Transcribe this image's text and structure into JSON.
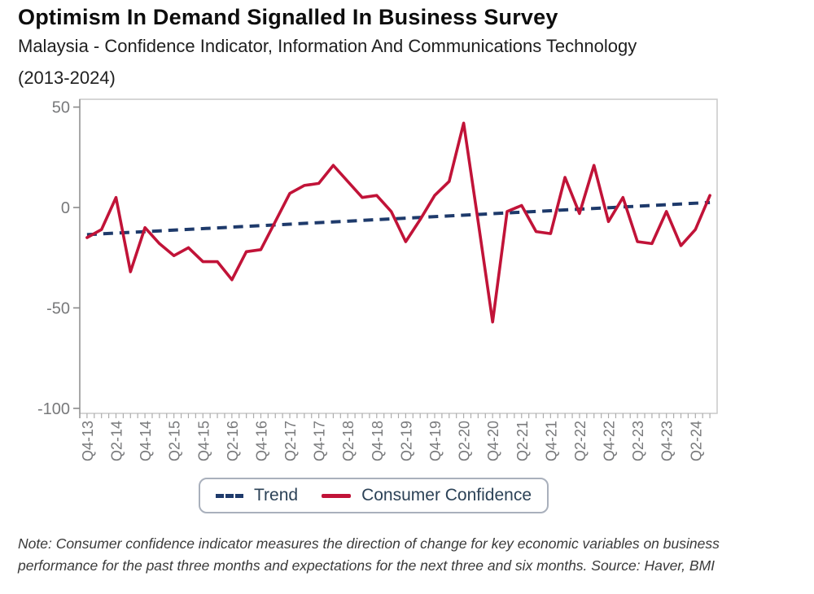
{
  "header": {
    "title": "Optimism In Demand Signalled In Business Survey",
    "subtitle_line1": "Malaysia - Confidence Indicator, Information And Communications Technology",
    "subtitle_line2": "(2013-2024)"
  },
  "chart_data": {
    "type": "line",
    "title": "Optimism In Demand Signalled In Business Survey",
    "subtitle": "Malaysia - Confidence Indicator, Information And Communications Technology (2013-2024)",
    "categories": [
      "Q4-13",
      "Q1-14",
      "Q2-14",
      "Q3-14",
      "Q4-14",
      "Q1-15",
      "Q2-15",
      "Q3-15",
      "Q4-15",
      "Q1-16",
      "Q2-16",
      "Q3-16",
      "Q4-16",
      "Q1-17",
      "Q2-17",
      "Q3-17",
      "Q4-17",
      "Q1-18",
      "Q2-18",
      "Q3-18",
      "Q4-18",
      "Q1-19",
      "Q2-19",
      "Q3-19",
      "Q4-19",
      "Q1-20",
      "Q2-20",
      "Q3-20",
      "Q4-20",
      "Q1-21",
      "Q2-21",
      "Q3-21",
      "Q4-21",
      "Q1-22",
      "Q2-22",
      "Q3-22",
      "Q4-22",
      "Q1-23",
      "Q2-23",
      "Q3-23",
      "Q4-23",
      "Q1-24",
      "Q2-24",
      "Q3-24"
    ],
    "x_tick_labels": [
      "Q4-13",
      "Q2-14",
      "Q4-14",
      "Q2-15",
      "Q4-15",
      "Q2-16",
      "Q4-16",
      "Q2-17",
      "Q4-17",
      "Q2-18",
      "Q4-18",
      "Q2-19",
      "Q4-19",
      "Q2-20",
      "Q4-20",
      "Q2-21",
      "Q4-21",
      "Q2-22",
      "Q4-22",
      "Q2-23",
      "Q4-23",
      "Q2-24"
    ],
    "series": [
      {
        "name": "Trend",
        "style": "dashed",
        "color": "#1e3a6b",
        "trend_start": -13.5,
        "trend_end": 2.5
      },
      {
        "name": "Consumer Confidence",
        "style": "solid",
        "color": "#c11338",
        "values": [
          -15,
          -11,
          5,
          -32,
          -10,
          -18,
          -24,
          -20,
          -27,
          -27,
          -36,
          -22,
          -21,
          -7,
          7,
          11,
          12,
          21,
          13,
          5,
          6,
          -2,
          -17,
          -6,
          6,
          13,
          42,
          -7,
          -57,
          -2,
          1,
          -12,
          -13,
          15,
          -3,
          21,
          -7,
          5,
          -17,
          -18,
          -2,
          -19,
          -11,
          6
        ]
      }
    ],
    "ylim": [
      -100,
      50
    ],
    "yticks": [
      50,
      0,
      -50,
      -100
    ],
    "grid": false,
    "legend_position": "bottom",
    "axis_label_color": "#78797b",
    "plot_border_color": "#c9c9c9"
  },
  "legend": {
    "items": [
      {
        "label": "Trend"
      },
      {
        "label": "Consumer Confidence"
      }
    ]
  },
  "note": {
    "text": "Note: Consumer confidence indicator measures the direction of change for key economic variables on business performance for the past three months and expectations for the next three and six months. Source: Haver, BMI"
  }
}
